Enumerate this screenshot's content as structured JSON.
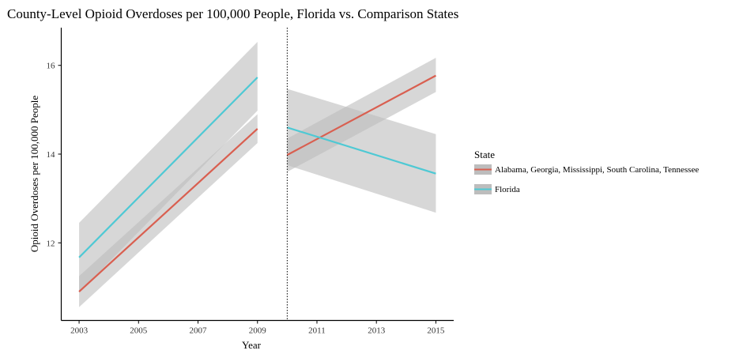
{
  "chart_data": {
    "type": "line",
    "title": "County-Level Opioid Overdoses per 100,000 People, Florida vs. Comparison States",
    "xlabel": "Year",
    "ylabel": "Opioid Overdoses per 100,000 People",
    "x_ticks": [
      2003,
      2005,
      2007,
      2009,
      2011,
      2013,
      2015
    ],
    "y_ticks": [
      12,
      14,
      16
    ],
    "xlim": [
      2002.4,
      2015.6
    ],
    "ylim": [
      10.25,
      16.85
    ],
    "cutoff_line": 2010,
    "grid": false,
    "legend_position": "right",
    "legend_title": "State",
    "series": [
      {
        "name": "Alabama, Georgia, Mississippi, South Carolina, Tennessee",
        "color": "#d95f50",
        "segments": [
          {
            "x": [
              2003,
              2009
            ],
            "y": [
              10.9,
              14.57
            ],
            "ci_low": [
              10.55,
              14.25
            ],
            "ci_high": [
              11.25,
              14.9
            ]
          },
          {
            "x": [
              2010,
              2015
            ],
            "y": [
              13.98,
              15.77
            ],
            "ci_low": [
              13.6,
              15.4
            ],
            "ci_high": [
              14.35,
              16.17
            ]
          }
        ]
      },
      {
        "name": "Florida",
        "color": "#4ec9d4",
        "segments": [
          {
            "x": [
              2003,
              2009
            ],
            "y": [
              11.67,
              15.73
            ],
            "ci_low": [
              10.88,
              14.98
            ],
            "ci_high": [
              12.45,
              16.53
            ]
          },
          {
            "x": [
              2010,
              2015
            ],
            "y": [
              14.6,
              13.56
            ],
            "ci_low": [
              13.75,
              12.68
            ],
            "ci_high": [
              15.47,
              14.45
            ]
          }
        ]
      }
    ]
  }
}
